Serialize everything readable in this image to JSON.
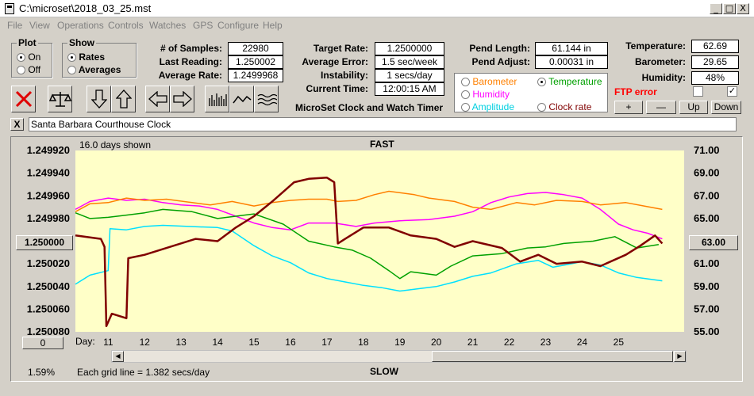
{
  "window": {
    "title": "C:\\microset\\2018_03_25.mst",
    "min": "_",
    "max": "□",
    "close": "X"
  },
  "menu": [
    "File",
    "View",
    "Operations",
    "Controls",
    "Watches",
    "GPS",
    "Configure",
    "Help"
  ],
  "plot_group": {
    "title": "Plot",
    "on": "On",
    "off": "Off",
    "selected": "On"
  },
  "show_group": {
    "title": "Show",
    "rates": "Rates",
    "averages": "Averages",
    "selected": "Rates"
  },
  "stats": {
    "num_samples_label": "# of Samples:",
    "num_samples": "22980",
    "last_reading_label": "Last Reading:",
    "last_reading": "1.250002",
    "average_rate_label": "Average Rate:",
    "average_rate": "1.2499968",
    "target_rate_label": "Target Rate:",
    "target_rate": "1.2500000",
    "average_error_label": "Average Error:",
    "average_error": "1.5 sec/week",
    "instability_label": "Instability:",
    "instability": "1 secs/day",
    "current_time_label": "Current Time:",
    "current_time": "12:00:15 AM",
    "pend_length_label": "Pend Length:",
    "pend_length": "61.144 in",
    "pend_adjust_label": "Pend Adjust:",
    "pend_adjust": "0.00031 in",
    "temperature_label": "Temperature:",
    "temperature": "62.69",
    "barometer_label": "Barometer:",
    "barometer": "29.65",
    "humidity_label": "Humidity:",
    "humidity": "48%"
  },
  "app_title": "MicroSet Clock and Watch Timer",
  "sensor_options": {
    "barometer": "Barometer",
    "temperature": "Temperature",
    "humidity": "Humidity",
    "amplitude": "Amplitude",
    "clock_rate": "Clock rate",
    "selected": "Temperature"
  },
  "ftp": {
    "label": "FTP error",
    "checkbox2": "✓"
  },
  "adjust_buttons": {
    "plus": "+",
    "minus": "—",
    "up": "Up",
    "down": "Down"
  },
  "watch": {
    "close": "X",
    "name": "Santa Barbara Courthouse Clock"
  },
  "colors": {
    "rate": "#800000",
    "temperature": "#00a000",
    "humidity": "#ff00ff",
    "barometer": "#ff8000",
    "amplitude": "#00e0ff",
    "plot_bg": "#ffffc8",
    "ftp": "#ff0000"
  },
  "chart_data": {
    "type": "line",
    "top_label": "FAST",
    "bottom_label": "SLOW",
    "days_shown": "16.0 days shown",
    "grid_note": "Each grid line = 1.382 secs/day",
    "percent": "1.59%",
    "day_label": "Day:",
    "left_axis": {
      "ticks": [
        "1.249920",
        "1.249940",
        "1.249960",
        "1.249980",
        "1.250000",
        "1.250020",
        "1.250040",
        "1.250060",
        "1.250080"
      ],
      "ylim": [
        1.24992,
        1.25008
      ],
      "center_button": "1.250000",
      "bottom_button": "0"
    },
    "right_axis": {
      "ticks": [
        "71.00",
        "69.00",
        "67.00",
        "65.00",
        "63.00",
        "61.00",
        "59.00",
        "57.00",
        "55.00"
      ],
      "ylim": [
        55,
        71
      ],
      "center_button": "63.00"
    },
    "x_axis": {
      "ticks": [
        "11",
        "12",
        "13",
        "14",
        "15",
        "16",
        "17",
        "18",
        "19",
        "20",
        "21",
        "22",
        "23",
        "24",
        "25"
      ],
      "xlim": [
        10.1,
        26.8
      ]
    },
    "series": [
      {
        "key": "rate",
        "units": "rate",
        "points": [
          [
            10.1,
            1.249995
          ],
          [
            10.8,
            1.249998
          ],
          [
            10.9,
            1.250005
          ],
          [
            10.95,
            1.250075
          ],
          [
            11.1,
            1.250064
          ],
          [
            11.5,
            1.250068
          ],
          [
            11.55,
            1.250015
          ],
          [
            12,
            1.250012
          ],
          [
            12.6,
            1.250006
          ],
          [
            13.4,
            1.249998
          ],
          [
            14,
            1.25
          ],
          [
            14.5,
            1.249988
          ],
          [
            15,
            1.249978
          ],
          [
            15.5,
            1.249965
          ],
          [
            16.1,
            1.249948
          ],
          [
            16.5,
            1.249945
          ],
          [
            17,
            1.249944
          ],
          [
            17.2,
            1.249948
          ],
          [
            17.3,
            1.250002
          ],
          [
            17.5,
            1.249998
          ],
          [
            18,
            1.249988
          ],
          [
            18.7,
            1.249988
          ],
          [
            19.3,
            1.249995
          ],
          [
            20,
            1.249998
          ],
          [
            20.5,
            1.250005
          ],
          [
            21,
            1.25
          ],
          [
            21.8,
            1.250006
          ],
          [
            22.3,
            1.250018
          ],
          [
            22.8,
            1.250012
          ],
          [
            23.3,
            1.25002
          ],
          [
            24,
            1.250018
          ],
          [
            24.5,
            1.250022
          ],
          [
            25.2,
            1.250012
          ],
          [
            25.6,
            1.250004
          ],
          [
            26,
            1.249995
          ],
          [
            26.2,
            1.250002
          ]
        ]
      },
      {
        "key": "temperature",
        "units": "temp",
        "points": [
          [
            10.1,
            65.5
          ],
          [
            10.5,
            65
          ],
          [
            11,
            65.1
          ],
          [
            11.5,
            65.3
          ],
          [
            12,
            65.5
          ],
          [
            12.5,
            65.8
          ],
          [
            13.3,
            65.6
          ],
          [
            14,
            65
          ],
          [
            15,
            65.4
          ],
          [
            15.8,
            64.5
          ],
          [
            16.5,
            63
          ],
          [
            17.2,
            62.5
          ],
          [
            17.7,
            62.2
          ],
          [
            18.2,
            61.5
          ],
          [
            18.7,
            60.4
          ],
          [
            19,
            59.7
          ],
          [
            19.3,
            60.3
          ],
          [
            20,
            60
          ],
          [
            20.4,
            60.8
          ],
          [
            21,
            61.7
          ],
          [
            21.8,
            61.9
          ],
          [
            22.5,
            62.4
          ],
          [
            23,
            62.5
          ],
          [
            23.5,
            62.8
          ],
          [
            24.3,
            63
          ],
          [
            24.9,
            63.4
          ],
          [
            25.5,
            62.4
          ],
          [
            26.1,
            62.7
          ]
        ]
      },
      {
        "key": "humidity",
        "units": "temp",
        "points": [
          [
            10.1,
            65.8
          ],
          [
            10.5,
            66.5
          ],
          [
            11,
            66.8
          ],
          [
            11.5,
            66.6
          ],
          [
            12,
            66.7
          ],
          [
            12.5,
            66.4
          ],
          [
            13,
            66.2
          ],
          [
            13.5,
            66.1
          ],
          [
            14,
            65.8
          ],
          [
            14.5,
            65.2
          ],
          [
            15,
            64.6
          ],
          [
            15.5,
            64.2
          ],
          [
            16,
            64
          ],
          [
            16.5,
            64.6
          ],
          [
            17.2,
            64.6
          ],
          [
            17.8,
            64.3
          ],
          [
            18.3,
            64.6
          ],
          [
            19,
            64.8
          ],
          [
            19.8,
            64.9
          ],
          [
            20.5,
            65.2
          ],
          [
            21,
            65.6
          ],
          [
            21.5,
            66.4
          ],
          [
            22,
            66.9
          ],
          [
            22.5,
            67.2
          ],
          [
            23,
            67.3
          ],
          [
            23.5,
            67.1
          ],
          [
            24,
            66.8
          ],
          [
            24.5,
            65.8
          ],
          [
            25,
            64.5
          ],
          [
            25.4,
            64
          ],
          [
            25.8,
            63.7
          ],
          [
            26.2,
            63.2
          ]
        ]
      },
      {
        "key": "barometer",
        "units": "temp",
        "points": [
          [
            10.1,
            65.6
          ],
          [
            10.5,
            66.3
          ],
          [
            11,
            66.4
          ],
          [
            11.5,
            66.8
          ],
          [
            12,
            66.6
          ],
          [
            12.6,
            66.7
          ],
          [
            13.3,
            66.4
          ],
          [
            13.8,
            66.2
          ],
          [
            14.4,
            66.5
          ],
          [
            15,
            66.1
          ],
          [
            15.5,
            66.4
          ],
          [
            16,
            66.6
          ],
          [
            16.5,
            66.7
          ],
          [
            17,
            66.7
          ],
          [
            17.3,
            66.5
          ],
          [
            17.8,
            66.6
          ],
          [
            18.3,
            67.1
          ],
          [
            18.7,
            67.4
          ],
          [
            19.4,
            67.1
          ],
          [
            19.8,
            66.8
          ],
          [
            20.5,
            66.5
          ],
          [
            21,
            66
          ],
          [
            21.5,
            65.8
          ],
          [
            22.2,
            66.4
          ],
          [
            22.7,
            66.2
          ],
          [
            23.3,
            66.6
          ],
          [
            24,
            66.5
          ],
          [
            24.5,
            66.2
          ],
          [
            25.2,
            66.4
          ],
          [
            25.7,
            66.1
          ],
          [
            26.2,
            65.8
          ]
        ]
      },
      {
        "key": "amplitude",
        "units": "temp",
        "points": [
          [
            10.1,
            59.2
          ],
          [
            10.5,
            60
          ],
          [
            11,
            60.4
          ],
          [
            11.05,
            64.1
          ],
          [
            11.5,
            64
          ],
          [
            12,
            64.3
          ],
          [
            12.5,
            64.4
          ],
          [
            13.2,
            64.3
          ],
          [
            14,
            64.2
          ],
          [
            14.4,
            63.9
          ],
          [
            15,
            62.6
          ],
          [
            15.5,
            61.7
          ],
          [
            16,
            61.1
          ],
          [
            16.5,
            60.2
          ],
          [
            17,
            59.7
          ],
          [
            17.5,
            59.4
          ],
          [
            18,
            59.1
          ],
          [
            18.5,
            58.9
          ],
          [
            19,
            58.6
          ],
          [
            19.5,
            58.8
          ],
          [
            20,
            59
          ],
          [
            20.5,
            59.4
          ],
          [
            21,
            59.9
          ],
          [
            21.5,
            60.2
          ],
          [
            22.2,
            61
          ],
          [
            22.8,
            61.3
          ],
          [
            23.2,
            60.7
          ],
          [
            23.7,
            61
          ],
          [
            24,
            61.2
          ],
          [
            24.5,
            60.9
          ],
          [
            25,
            60.2
          ],
          [
            25.5,
            59.8
          ],
          [
            26.2,
            59.5
          ]
        ]
      }
    ]
  }
}
